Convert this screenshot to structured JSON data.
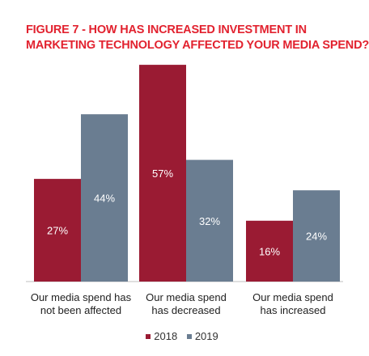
{
  "title": {
    "line1": "FIGURE 7 - HOW HAS INCREASED INVESTMENT IN",
    "line2": "MARKETING TECHNOLOGY AFFECTED YOUR MEDIA SPEND?"
  },
  "colors": {
    "title": "#e2222f",
    "series_2018": "#9a1b33",
    "series_2019": "#6a7d91"
  },
  "legend": {
    "items": [
      {
        "label": "2018",
        "color": "#9a1b33"
      },
      {
        "label": "2019",
        "color": "#6a7d91"
      }
    ]
  },
  "chart_data": {
    "type": "bar",
    "title": "FIGURE 7 - HOW HAS INCREASED INVESTMENT IN MARKETING TECHNOLOGY AFFECTED YOUR MEDIA SPEND?",
    "categories": [
      [
        "Our media spend has",
        "not been affected"
      ],
      [
        "Our media spend",
        "has decreased"
      ],
      [
        "Our media spend",
        "has increased"
      ]
    ],
    "series": [
      {
        "name": "2018",
        "values": [
          27,
          57,
          16
        ],
        "labels": [
          "27%",
          "57%",
          "16%"
        ],
        "color": "#9a1b33"
      },
      {
        "name": "2019",
        "values": [
          44,
          32,
          24
        ],
        "labels": [
          "44%",
          "32%",
          "24%"
        ],
        "color": "#6a7d91"
      }
    ],
    "ylim": [
      0,
      60
    ],
    "value_suffix": "%",
    "legend_position": "bottom-center",
    "grid": false
  }
}
